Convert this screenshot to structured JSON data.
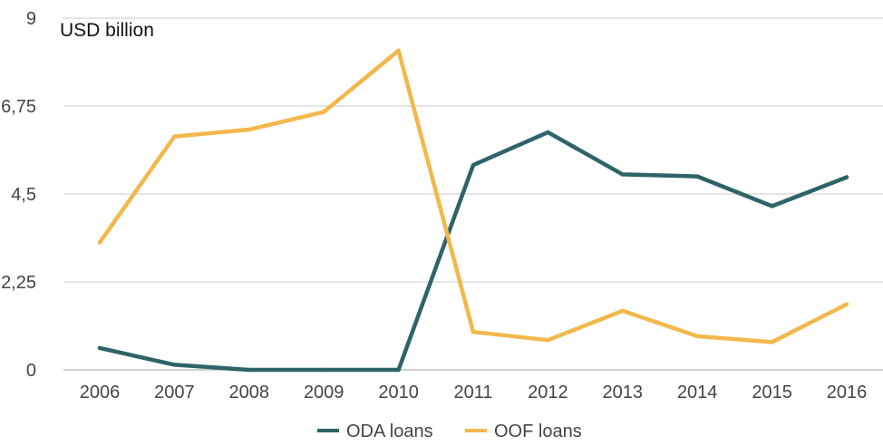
{
  "chart_data": {
    "type": "line",
    "unit_label": "USD billion",
    "categories": [
      "2006",
      "2007",
      "2008",
      "2009",
      "2010",
      "2011",
      "2012",
      "2013",
      "2014",
      "2015",
      "2016"
    ],
    "y_ticks": [
      0,
      2.25,
      4.5,
      6.75,
      9
    ],
    "y_tick_labels": [
      "0",
      "2,25",
      "4,5",
      "6,75",
      "9"
    ],
    "ylim": [
      0,
      9
    ],
    "grid": true,
    "legend_position": "bottom",
    "series": [
      {
        "name": "ODA loans",
        "color": "#2e6468",
        "values": [
          0.56,
          0.13,
          0.0,
          0.0,
          0.0,
          5.24,
          6.08,
          5.0,
          4.95,
          4.19,
          4.93
        ]
      },
      {
        "name": "OOF loans",
        "color": "#f2b84b",
        "values": [
          3.26,
          5.97,
          6.15,
          6.6,
          8.17,
          0.97,
          0.76,
          1.51,
          0.86,
          0.71,
          1.68
        ]
      }
    ]
  }
}
